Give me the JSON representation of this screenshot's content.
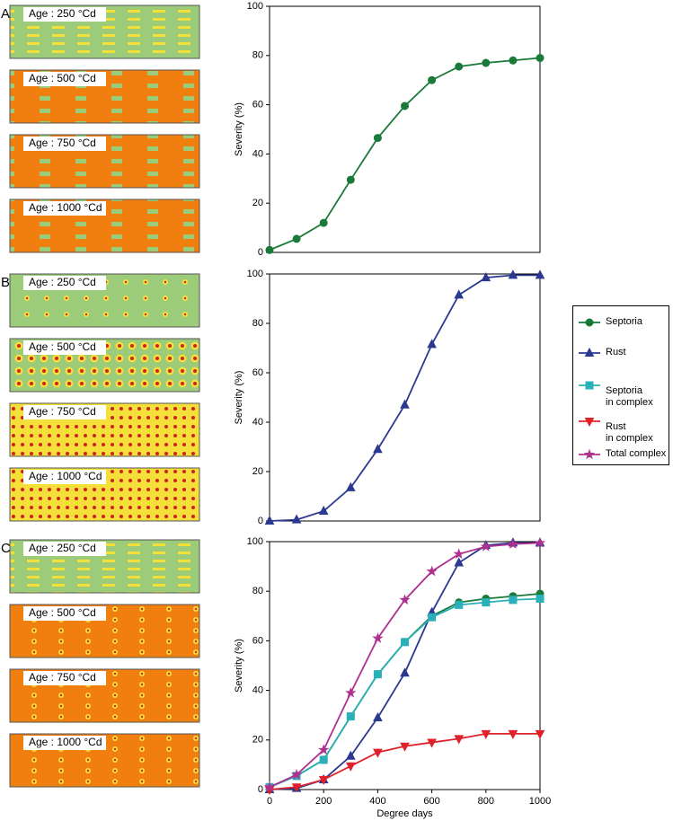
{
  "panels": [
    {
      "label": "A",
      "thumbnails": [
        "Age : 250 °Cd",
        "Age : 500 °Cd",
        "Age : 750 °Cd",
        "Age : 1000 °Cd"
      ]
    },
    {
      "label": "B",
      "thumbnails": [
        "Age : 250 °Cd",
        "Age : 500 °Cd",
        "Age : 750 °Cd",
        "Age : 1000 °Cd"
      ]
    },
    {
      "label": "C",
      "thumbnails": [
        "Age : 250 °Cd",
        "Age : 500 °Cd",
        "Age : 750 °Cd",
        "Age : 1000 °Cd"
      ]
    }
  ],
  "chart_data": [
    {
      "type": "line",
      "ylabel": "Severity (%)",
      "xlim": [
        0,
        1000
      ],
      "ylim": [
        0,
        100
      ],
      "yticks": [
        0,
        20,
        40,
        60,
        80,
        100
      ],
      "x": [
        0,
        100,
        200,
        300,
        400,
        500,
        600,
        700,
        800,
        900,
        1000
      ],
      "series": [
        {
          "name": "Septoria",
          "color": "#1a7a3a",
          "marker": "circle",
          "values": [
            1,
            5.5,
            12,
            29.5,
            46.5,
            59.5,
            70,
            75.5,
            77,
            78,
            79
          ]
        }
      ]
    },
    {
      "type": "line",
      "ylabel": "Severity (%)",
      "xlim": [
        0,
        1000
      ],
      "ylim": [
        0,
        100
      ],
      "yticks": [
        0,
        20,
        40,
        60,
        80,
        100
      ],
      "x": [
        0,
        100,
        200,
        300,
        400,
        500,
        600,
        700,
        800,
        900,
        1000
      ],
      "series": [
        {
          "name": "Rust",
          "color": "#2b3990",
          "marker": "triangle-up",
          "values": [
            0,
            0.5,
            4,
            13.5,
            29,
            47,
            71.5,
            91.5,
            98.5,
            99.5,
            99.5
          ]
        }
      ]
    },
    {
      "type": "line",
      "ylabel": "Severity (%)",
      "xlabel": "Degree days",
      "xlim": [
        0,
        1000
      ],
      "ylim": [
        0,
        100
      ],
      "xticks": [
        0,
        200,
        400,
        600,
        800,
        1000
      ],
      "yticks": [
        0,
        20,
        40,
        60,
        80,
        100
      ],
      "legend": "right",
      "x": [
        0,
        100,
        200,
        300,
        400,
        500,
        600,
        700,
        800,
        900,
        1000
      ],
      "series": [
        {
          "name": "Septoria",
          "color": "#1a7a3a",
          "marker": "circle",
          "values": [
            1,
            5.5,
            12,
            29.5,
            46.5,
            59.5,
            70,
            75.5,
            77,
            78,
            79
          ]
        },
        {
          "name": "Rust",
          "color": "#2b3990",
          "marker": "triangle-up",
          "values": [
            0,
            0.5,
            4,
            13.5,
            29,
            47,
            71.5,
            91.5,
            98.5,
            99.5,
            99.5
          ]
        },
        {
          "name": "Septoria\nin complex",
          "color": "#2ab0b8",
          "marker": "square",
          "values": [
            1,
            5.5,
            12,
            29.5,
            46.5,
            59.5,
            69.5,
            74.5,
            75.5,
            76.5,
            77
          ]
        },
        {
          "name": "Rust\nin complex",
          "color": "#e0202a",
          "marker": "triangle-down",
          "values": [
            0,
            1,
            4,
            9.5,
            15,
            17.5,
            19,
            20.5,
            22.5,
            22.5,
            22.5
          ]
        },
        {
          "name": "Total complex",
          "color": "#b03090",
          "marker": "star",
          "values": [
            1,
            6,
            16,
            39,
            61,
            76.5,
            88,
            95,
            98,
            99,
            99.5
          ]
        }
      ]
    }
  ]
}
